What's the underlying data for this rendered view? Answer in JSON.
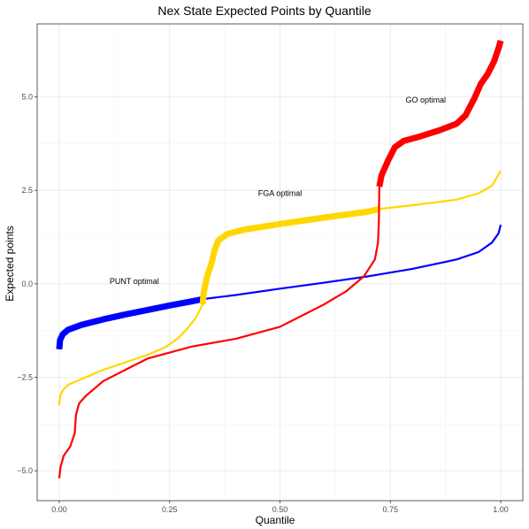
{
  "chart_data": {
    "type": "line",
    "title": "Nex State Expected Points by Quantile",
    "xlabel": "Quantile",
    "ylabel": "Expected points",
    "xlim": [
      -0.05,
      1.05
    ],
    "ylim": [
      -5.8,
      6.95
    ],
    "x_ticks": [
      0.0,
      0.25,
      0.5,
      0.75,
      1.0
    ],
    "x_tick_labels": [
      "0.00",
      "0.25",
      "0.50",
      "0.75",
      "1.00"
    ],
    "y_ticks": [
      -5.0,
      -2.5,
      0.0,
      2.5,
      5.0
    ],
    "y_tick_labels": [
      "−5.0",
      "−2.5",
      "0.0",
      "2.5",
      "5.0"
    ],
    "grid": true,
    "series": [
      {
        "color": "#0000ff",
        "optimal_range": [
          0.0,
          0.325
        ],
        "points": [
          [
            0.0,
            -1.75
          ],
          [
            0.002,
            -1.5
          ],
          [
            0.008,
            -1.35
          ],
          [
            0.02,
            -1.23
          ],
          [
            0.05,
            -1.1
          ],
          [
            0.1,
            -0.95
          ],
          [
            0.15,
            -0.82
          ],
          [
            0.2,
            -0.7
          ],
          [
            0.25,
            -0.58
          ],
          [
            0.3,
            -0.47
          ],
          [
            0.325,
            -0.41
          ],
          [
            0.4,
            -0.3
          ],
          [
            0.5,
            -0.13
          ],
          [
            0.6,
            0.03
          ],
          [
            0.7,
            0.2
          ],
          [
            0.8,
            0.4
          ],
          [
            0.9,
            0.65
          ],
          [
            0.95,
            0.85
          ],
          [
            0.98,
            1.1
          ],
          [
            0.995,
            1.35
          ],
          [
            1.0,
            1.58
          ]
        ]
      },
      {
        "color": "#ffd700",
        "optimal_range": [
          0.325,
          0.725
        ],
        "points": [
          [
            0.0,
            -3.25
          ],
          [
            0.002,
            -3.0
          ],
          [
            0.008,
            -2.85
          ],
          [
            0.02,
            -2.7
          ],
          [
            0.05,
            -2.55
          ],
          [
            0.1,
            -2.3
          ],
          [
            0.15,
            -2.1
          ],
          [
            0.2,
            -1.9
          ],
          [
            0.24,
            -1.7
          ],
          [
            0.27,
            -1.45
          ],
          [
            0.29,
            -1.2
          ],
          [
            0.31,
            -0.9
          ],
          [
            0.325,
            -0.55
          ],
          [
            0.327,
            -0.25
          ],
          [
            0.335,
            0.2
          ],
          [
            0.345,
            0.55
          ],
          [
            0.352,
            0.9
          ],
          [
            0.36,
            1.15
          ],
          [
            0.38,
            1.33
          ],
          [
            0.42,
            1.45
          ],
          [
            0.5,
            1.6
          ],
          [
            0.6,
            1.77
          ],
          [
            0.7,
            1.93
          ],
          [
            0.725,
            2.0
          ],
          [
            0.8,
            2.1
          ],
          [
            0.9,
            2.25
          ],
          [
            0.95,
            2.42
          ],
          [
            0.98,
            2.62
          ],
          [
            1.0,
            3.02
          ]
        ]
      },
      {
        "color": "#ff0000",
        "optimal_range": [
          0.725,
          1.0
        ],
        "points": [
          [
            0.0,
            -5.2
          ],
          [
            0.003,
            -4.9
          ],
          [
            0.01,
            -4.6
          ],
          [
            0.025,
            -4.35
          ],
          [
            0.035,
            -4.0
          ],
          [
            0.038,
            -3.5
          ],
          [
            0.045,
            -3.2
          ],
          [
            0.06,
            -3.0
          ],
          [
            0.1,
            -2.6
          ],
          [
            0.15,
            -2.3
          ],
          [
            0.2,
            -2.0
          ],
          [
            0.3,
            -1.68
          ],
          [
            0.4,
            -1.47
          ],
          [
            0.5,
            -1.15
          ],
          [
            0.55,
            -0.85
          ],
          [
            0.6,
            -0.55
          ],
          [
            0.65,
            -0.2
          ],
          [
            0.69,
            0.2
          ],
          [
            0.715,
            0.65
          ],
          [
            0.722,
            1.1
          ],
          [
            0.724,
            1.7
          ],
          [
            0.725,
            2.6
          ],
          [
            0.73,
            2.9
          ],
          [
            0.745,
            3.3
          ],
          [
            0.76,
            3.65
          ],
          [
            0.78,
            3.82
          ],
          [
            0.82,
            3.95
          ],
          [
            0.86,
            4.1
          ],
          [
            0.9,
            4.28
          ],
          [
            0.92,
            4.5
          ],
          [
            0.94,
            4.95
          ],
          [
            0.955,
            5.35
          ],
          [
            0.97,
            5.6
          ],
          [
            0.985,
            5.95
          ],
          [
            0.995,
            6.3
          ],
          [
            1.0,
            6.5
          ]
        ]
      }
    ],
    "annotations": [
      {
        "text": "PUNT optimal",
        "x": 0.17,
        "y": -0.1
      },
      {
        "text": "FGA optimal",
        "x": 0.5,
        "y": 2.25
      },
      {
        "text": "GO optimal",
        "x": 0.83,
        "y": 4.75
      }
    ]
  }
}
